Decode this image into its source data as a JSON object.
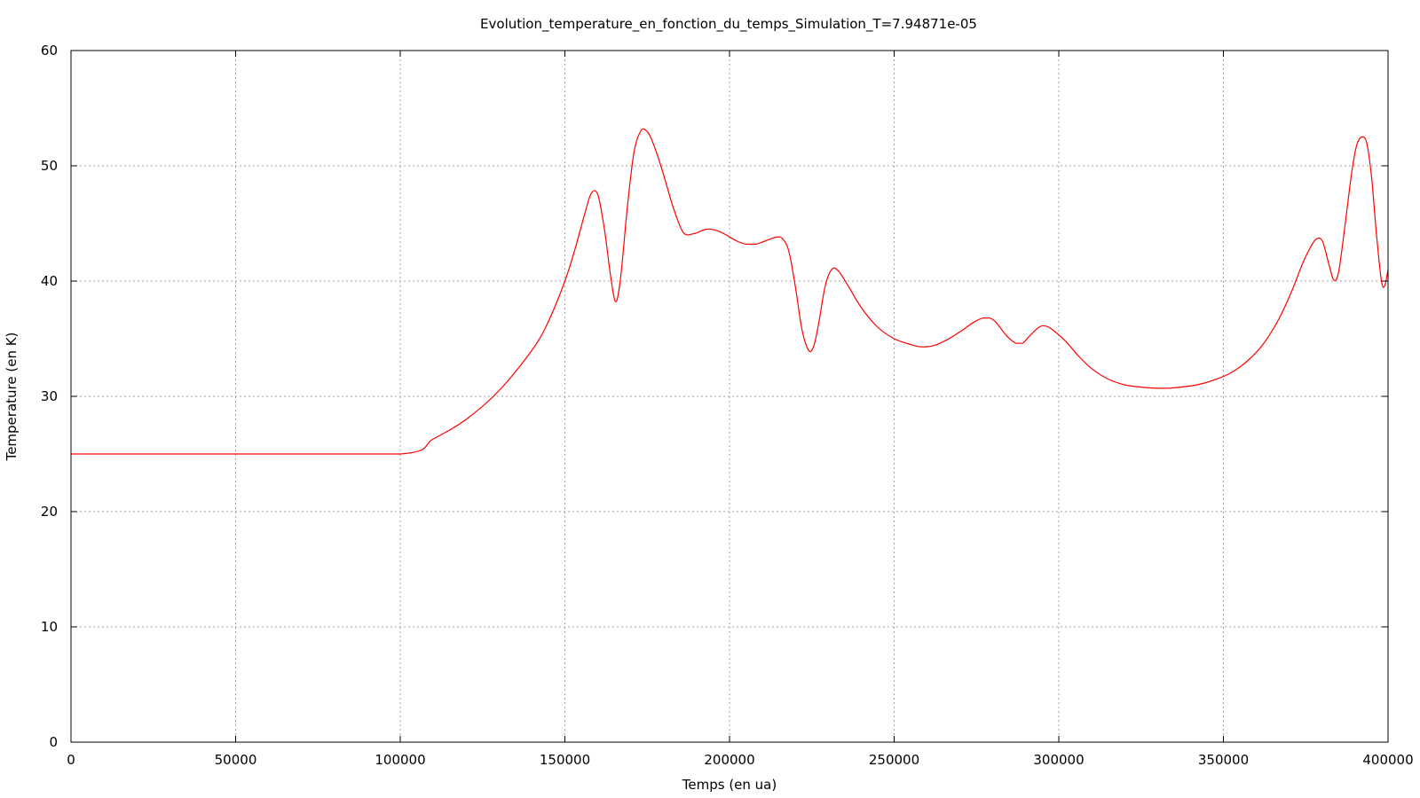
{
  "chart_data": {
    "type": "line",
    "title": "Evolution_temperature_en_fonction_du_temps_Simulation_T=7.94871e-05",
    "xlabel": "Temps (en ua)",
    "ylabel": "Temperature (en K)",
    "xlim": [
      0,
      400000
    ],
    "ylim": [
      0,
      60
    ],
    "grid": true,
    "legend": "none",
    "x_ticks": [
      "0",
      "50000",
      "100000",
      "150000",
      "200000",
      "250000",
      "300000",
      "350000",
      "400000"
    ],
    "y_ticks": [
      "0",
      "10",
      "20",
      "30",
      "40",
      "50",
      "60"
    ],
    "series_color": "#ff0000",
    "series": [
      {
        "x": [
          0,
          50000,
          100000,
          110000,
          120000,
          130000,
          140000,
          145000,
          150000,
          153000,
          156000,
          158000,
          160000,
          162000,
          164000,
          165500,
          167000,
          169000,
          171000,
          173000,
          174500,
          176000,
          178000,
          180000,
          183000,
          186000,
          189000,
          191000,
          193000,
          196000,
          199000,
          202000,
          205000,
          208000,
          211000,
          214000,
          216000,
          218000,
          220000,
          222000,
          224000,
          225500,
          227000,
          229000,
          231000,
          233000,
          236000,
          240000,
          245000,
          250000,
          255000,
          258000,
          262000,
          266000,
          270000,
          274000,
          277000,
          279000,
          281000,
          284000,
          287000,
          289000,
          291000,
          294000,
          296000,
          298000,
          302000,
          306000,
          310000,
          315000,
          320000,
          325000,
          330000,
          333000,
          337000,
          342000,
          347000,
          352000,
          357000,
          362000,
          367000,
          371000,
          374000,
          376000,
          378000,
          380000,
          382000,
          383500,
          385000,
          387000,
          389000,
          390500,
          392000,
          393500,
          395000,
          396500,
          398000,
          399000,
          400000
        ],
        "y": [
          25,
          25,
          25,
          26.3,
          28,
          30.5,
          34,
          36.5,
          40,
          42.7,
          45.8,
          47.6,
          47.5,
          44.5,
          40.2,
          38.2,
          40.5,
          46.5,
          51.2,
          53.0,
          53.1,
          52.5,
          51.0,
          49.2,
          46.3,
          44.2,
          44.1,
          44.3,
          44.5,
          44.4,
          44.0,
          43.5,
          43.2,
          43.2,
          43.5,
          43.8,
          43.7,
          42.6,
          39.5,
          35.8,
          34.0,
          34.3,
          36.2,
          39.5,
          41.0,
          40.9,
          39.6,
          37.7,
          36.0,
          35.0,
          34.5,
          34.3,
          34.4,
          34.9,
          35.6,
          36.4,
          36.8,
          36.8,
          36.4,
          35.3,
          34.6,
          34.6,
          35.2,
          36.0,
          36.1,
          35.8,
          34.8,
          33.5,
          32.4,
          31.5,
          31.0,
          30.8,
          30.7,
          30.7,
          30.8,
          31.0,
          31.4,
          32.0,
          33.0,
          34.5,
          36.8,
          39.3,
          41.5,
          42.7,
          43.6,
          43.5,
          41.5,
          40.1,
          40.8,
          45.0,
          49.5,
          51.8,
          52.5,
          52.0,
          49.0,
          44.0,
          40.0,
          39.6,
          41.0
        ]
      }
    ]
  }
}
